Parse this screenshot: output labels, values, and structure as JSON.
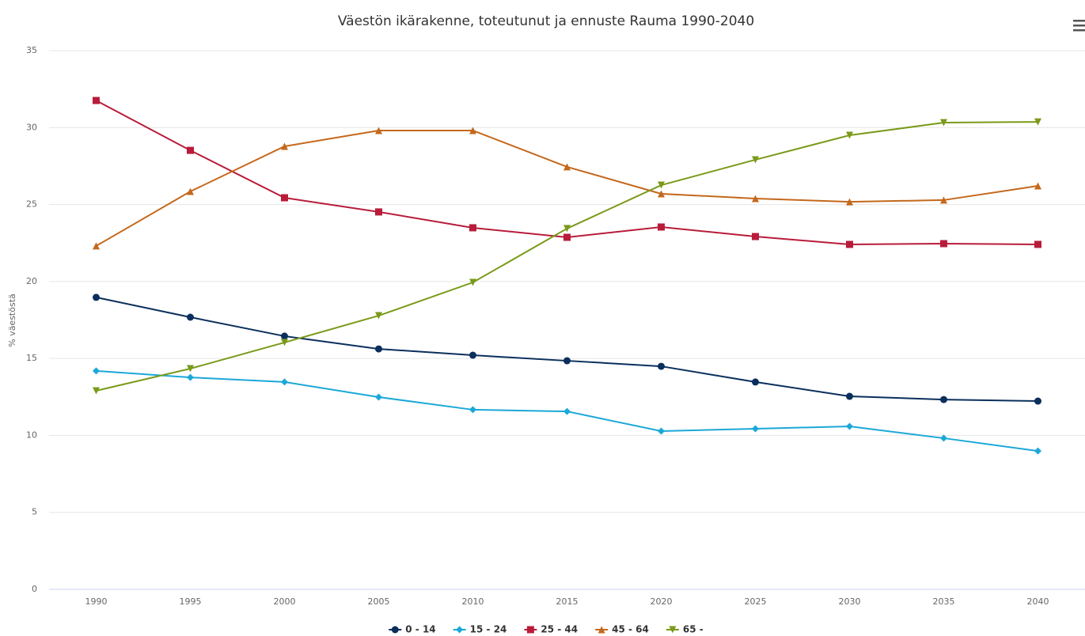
{
  "chart_data": {
    "type": "line",
    "title": "Väestön ikärakenne, toteutunut ja ennuste Rauma 1990-2040",
    "y_label": "% väestöstä",
    "categories": [
      "1990",
      "1995",
      "2000",
      "2005",
      "2010",
      "2015",
      "2020",
      "2025",
      "2030",
      "2035",
      "2040"
    ],
    "series": [
      {
        "name": "0 - 14",
        "color": "#0a2f5c",
        "symbol": "circle",
        "values": [
          18.97,
          17.68,
          16.45,
          15.62,
          15.21,
          14.85,
          14.49,
          13.47,
          12.54,
          12.33,
          12.23
        ]
      },
      {
        "name": "15 - 24",
        "color": "#1ba8d8",
        "symbol": "diamond",
        "values": [
          14.19,
          13.77,
          13.47,
          12.49,
          11.67,
          11.56,
          10.28,
          10.43,
          10.59,
          9.82,
          8.99
        ]
      },
      {
        "name": "25 - 44",
        "color": "#b81c3a",
        "symbol": "square",
        "values": [
          31.76,
          28.52,
          25.44,
          24.52,
          23.49,
          22.87,
          23.54,
          22.92,
          22.41,
          22.46,
          22.41
        ]
      },
      {
        "name": "45 - 64",
        "color": "#c4681c",
        "symbol": "triangle",
        "values": [
          22.31,
          25.85,
          28.78,
          29.81,
          29.81,
          27.45,
          25.7,
          25.39,
          25.18,
          25.29,
          26.21
        ]
      },
      {
        "name": "65 -",
        "color": "#7a9a1a",
        "symbol": "triangle-down",
        "values": [
          12.9,
          14.34,
          16.04,
          17.78,
          19.94,
          23.44,
          26.26,
          27.91,
          29.5,
          30.32,
          30.37
        ]
      }
    ],
    "ylim": [
      0,
      35
    ],
    "yticks": [
      0,
      5,
      10,
      15,
      20,
      25,
      30,
      35
    ],
    "grid": true,
    "legend": "bottom"
  }
}
